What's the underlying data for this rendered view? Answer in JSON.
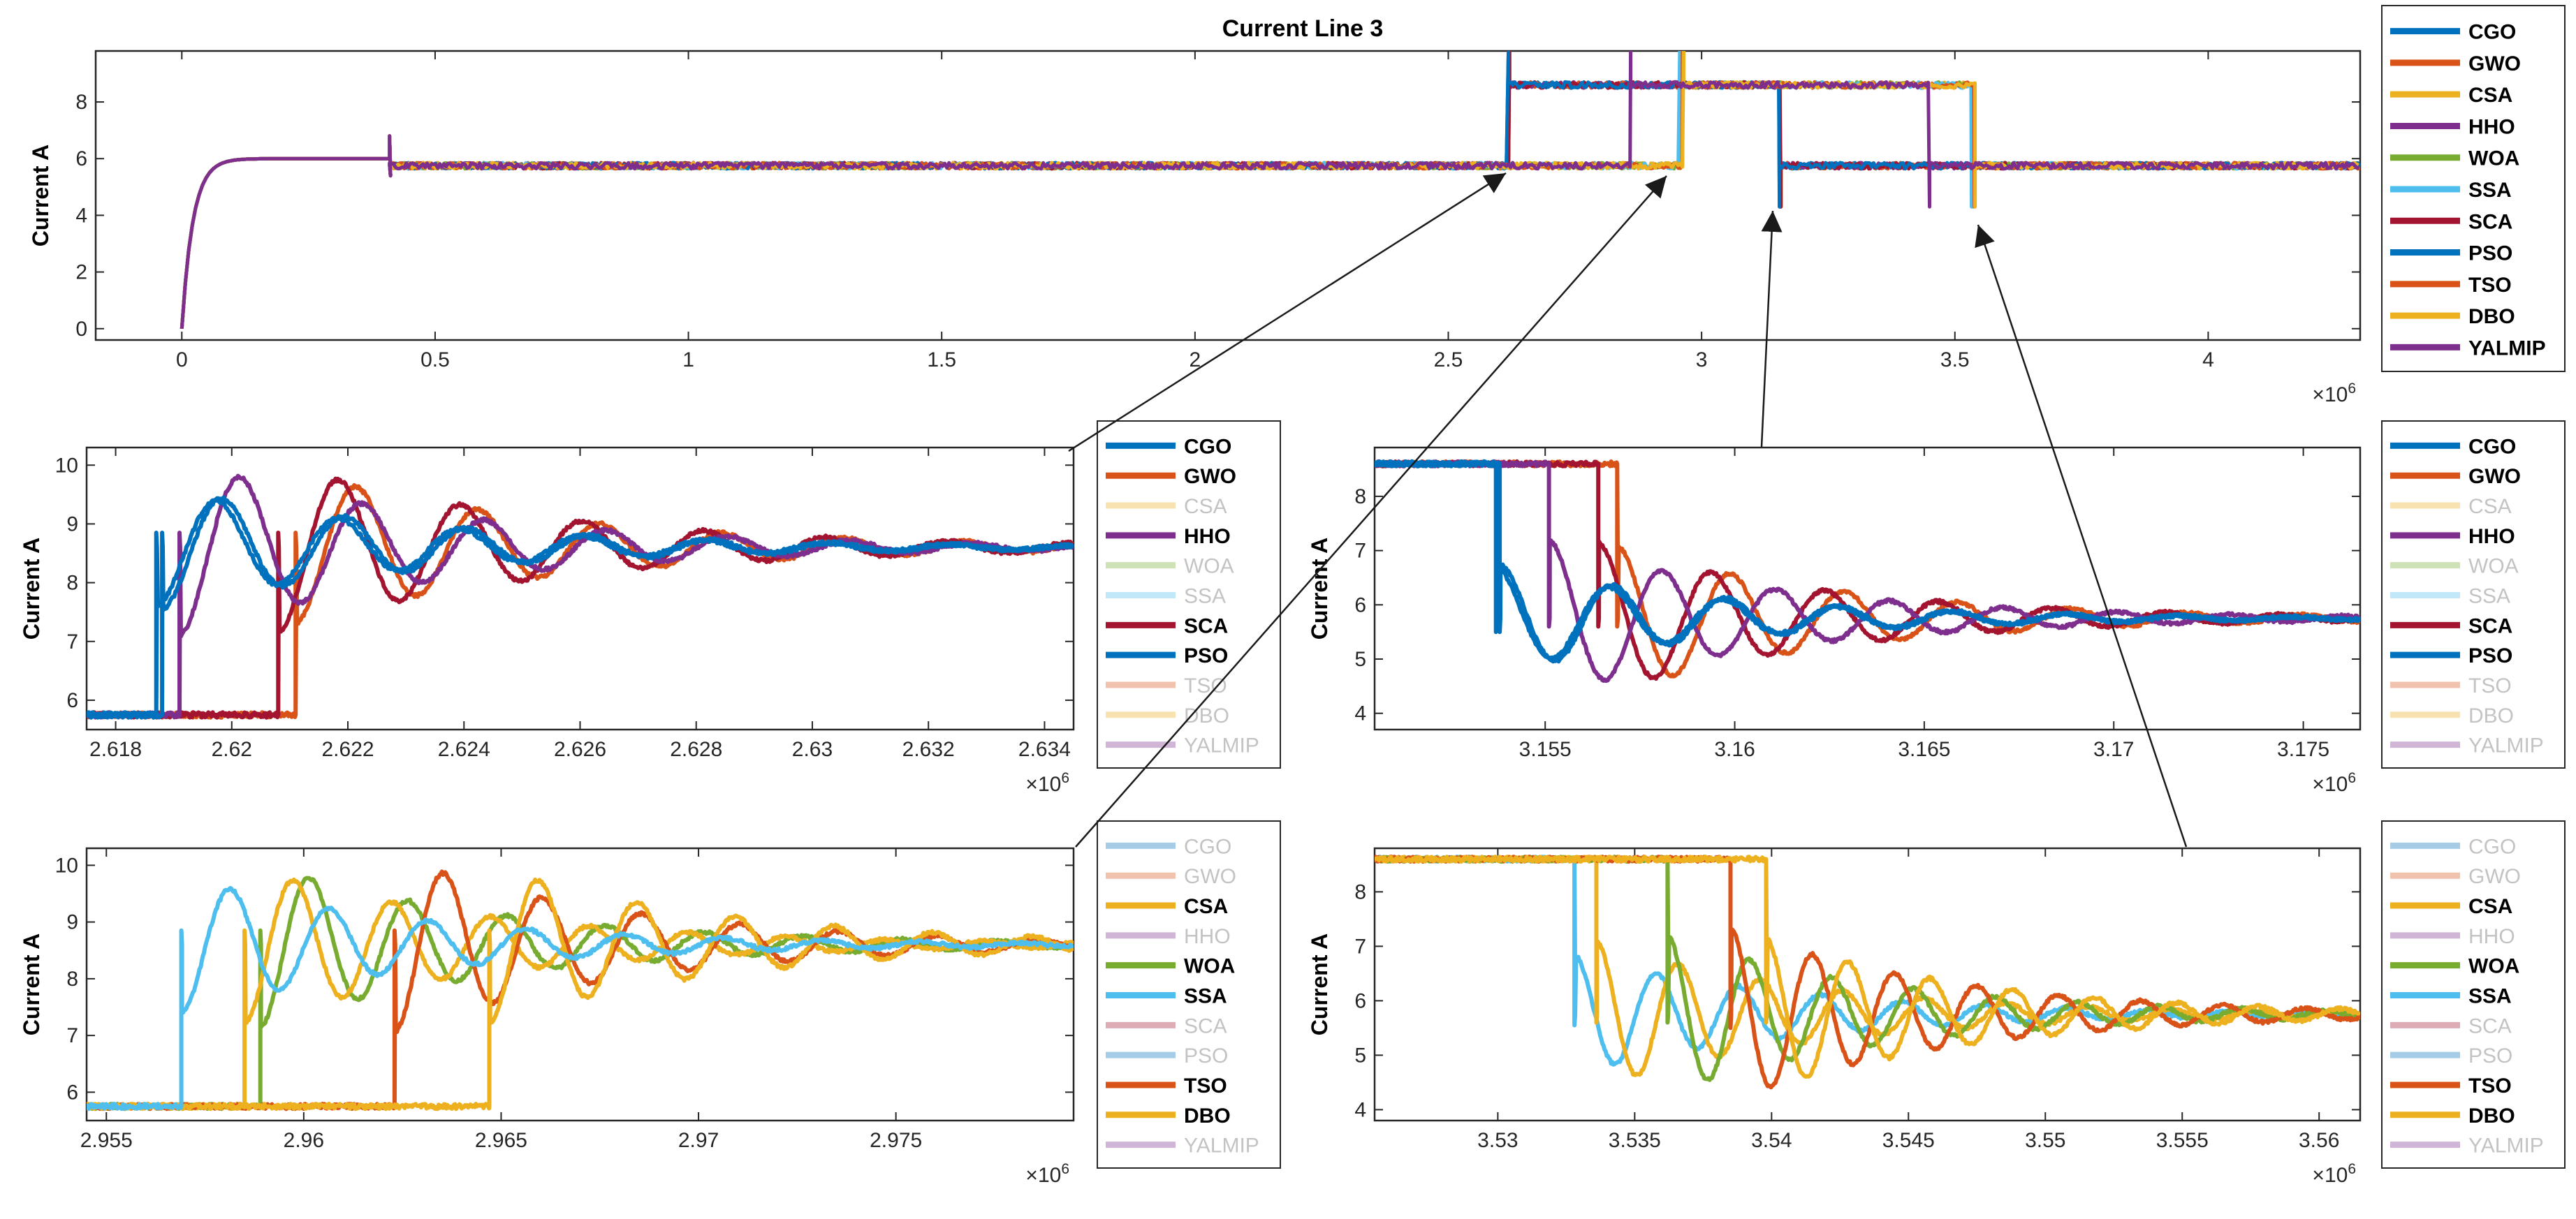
{
  "figure_title": "Current Line 3",
  "series_names": [
    "CGO",
    "GWO",
    "CSA",
    "HHO",
    "WOA",
    "SSA",
    "SCA",
    "PSO",
    "TSO",
    "DBO",
    "YALMIP"
  ],
  "series_colors": {
    "CGO": "#0072BD",
    "GWO": "#D95319",
    "CSA": "#EDB120",
    "HHO": "#7E2F8E",
    "WOA": "#77AC30",
    "SSA": "#4DBEEE",
    "SCA": "#A2142F",
    "PSO": "#0072BD",
    "TSO": "#D95319",
    "DBO": "#EDB120",
    "YALMIP": "#7E2F8E"
  },
  "chart_data": [
    {
      "id": "main",
      "type": "line",
      "title": "Current Line 3",
      "xlabel": "",
      "ylabel": "Current A",
      "x_exponent_label": "×10^6",
      "xlim": [
        -0.17,
        4.3
      ],
      "ylim": [
        -0.4,
        9.8
      ],
      "xticks": [
        0,
        0.5,
        1,
        1.5,
        2,
        2.5,
        3,
        3.5,
        4
      ],
      "xtick_labels": [
        "0",
        "0.5",
        "1",
        "1.5",
        "2",
        "2.5",
        "3",
        "3.5",
        "4"
      ],
      "yticks": [
        0,
        2,
        4,
        6,
        8
      ],
      "ytick_labels": [
        "0",
        "2",
        "4",
        "6",
        "8"
      ],
      "legend_active": [
        "CGO",
        "GWO",
        "CSA",
        "HHO",
        "WOA",
        "SSA",
        "SCA",
        "PSO",
        "TSO",
        "DBO",
        "YALMIP"
      ],
      "legend_placement": "outside-right",
      "series": [
        {
          "name": "CGO",
          "steps": [
            [
              0.41,
              5.75
            ],
            [
              2.6188,
              8.6
            ],
            [
              3.1538,
              5.75
            ]
          ]
        },
        {
          "name": "GWO",
          "steps": [
            [
              0.41,
              5.75
            ],
            [
              2.6211,
              8.6
            ],
            [
              3.1569,
              5.75
            ]
          ]
        },
        {
          "name": "CSA",
          "steps": [
            [
              0.41,
              5.75
            ],
            [
              2.9585,
              8.6
            ],
            [
              3.5336,
              5.75
            ]
          ]
        },
        {
          "name": "HHO",
          "steps": [
            [
              0.41,
              5.75
            ],
            [
              2.6191,
              8.6
            ],
            [
              3.1551,
              5.75
            ]
          ]
        },
        {
          "name": "WOA",
          "steps": [
            [
              0.41,
              5.75
            ],
            [
              2.9589,
              8.6
            ],
            [
              3.5362,
              5.75
            ]
          ]
        },
        {
          "name": "SSA",
          "steps": [
            [
              0.41,
              5.75
            ],
            [
              2.9569,
              8.6
            ],
            [
              3.5328,
              5.75
            ]
          ]
        },
        {
          "name": "SCA",
          "steps": [
            [
              0.41,
              5.75
            ],
            [
              2.6208,
              8.6
            ],
            [
              3.1564,
              5.75
            ]
          ]
        },
        {
          "name": "PSO",
          "steps": [
            [
              0.41,
              5.75
            ],
            [
              2.6187,
              8.6
            ],
            [
              3.1537,
              5.75
            ]
          ]
        },
        {
          "name": "TSO",
          "steps": [
            [
              0.41,
              5.75
            ],
            [
              2.9623,
              8.6
            ],
            [
              3.5385,
              5.75
            ]
          ]
        },
        {
          "name": "DBO",
          "steps": [
            [
              0.41,
              5.75
            ],
            [
              2.9647,
              8.6
            ],
            [
              3.5398,
              5.75
            ]
          ]
        },
        {
          "name": "YALMIP",
          "steps": [
            [
              0.41,
              5.75
            ],
            [
              2.86,
              8.6
            ],
            [
              3.45,
              5.75
            ]
          ]
        }
      ]
    },
    {
      "id": "zoom1",
      "type": "line",
      "title": "",
      "ylabel": "Current A",
      "x_exponent_label": "×10^6",
      "xlim": [
        2.6175,
        2.6345
      ],
      "ylim": [
        5.5,
        10.3
      ],
      "xticks": [
        2.618,
        2.62,
        2.622,
        2.624,
        2.626,
        2.628,
        2.63,
        2.632,
        2.634
      ],
      "xtick_labels": [
        "2.618",
        "2.62",
        "2.622",
        "2.624",
        "2.626",
        "2.628",
        "2.63",
        "2.632",
        "2.634"
      ],
      "yticks": [
        6,
        7,
        8,
        9,
        10
      ],
      "ytick_labels": [
        "6",
        "7",
        "8",
        "9",
        "10"
      ],
      "legend_active": [
        "CGO",
        "GWO",
        "HHO",
        "SCA",
        "PSO"
      ],
      "legend_placement": "outside-right",
      "zoom_of_main_x": 2.62,
      "series": [
        {
          "name": "GWO",
          "t0": 2.6211,
          "from": 5.75,
          "to": 8.6,
          "amp": 1.3,
          "period": 0.0021,
          "decay": 0.0045,
          "spike": 8.7
        },
        {
          "name": "SCA",
          "t0": 2.6208,
          "from": 5.75,
          "to": 8.6,
          "amp": 1.45,
          "period": 0.0021,
          "decay": 0.0045,
          "spike": 8.7
        },
        {
          "name": "HHO",
          "t0": 2.6191,
          "from": 5.75,
          "to": 8.6,
          "amp": 1.5,
          "period": 0.0021,
          "decay": 0.0045,
          "spike": 8.7
        },
        {
          "name": "CGO",
          "t0": 2.6188,
          "from": 5.75,
          "to": 8.6,
          "amp": 1.05,
          "period": 0.0021,
          "decay": 0.0045,
          "spike": 8.7
        },
        {
          "name": "PSO",
          "t0": 2.6187,
          "from": 5.75,
          "to": 8.6,
          "amp": 1.0,
          "period": 0.0021,
          "decay": 0.0045,
          "spike": 8.7
        }
      ]
    },
    {
      "id": "zoom2",
      "type": "line",
      "title": "",
      "ylabel": "Current A",
      "x_exponent_label": "×10^6",
      "xlim": [
        3.1505,
        3.1765
      ],
      "ylim": [
        3.7,
        8.9
      ],
      "xticks": [
        3.155,
        3.16,
        3.165,
        3.17,
        3.175
      ],
      "xtick_labels": [
        "3.155",
        "3.16",
        "3.165",
        "3.17",
        "3.175"
      ],
      "yticks": [
        4,
        5,
        6,
        7,
        8
      ],
      "ytick_labels": [
        "4",
        "5",
        "6",
        "7",
        "8"
      ],
      "legend_active": [
        "CGO",
        "GWO",
        "HHO",
        "SCA",
        "PSO"
      ],
      "legend_placement": "outside-right",
      "zoom_of_main_x": 3.15,
      "series": [
        {
          "name": "GWO",
          "t0": 3.1569,
          "from": 8.6,
          "to": 5.75,
          "amp": -1.35,
          "period": 0.003,
          "decay": 0.006,
          "spike": 5.7
        },
        {
          "name": "SCA",
          "t0": 3.1564,
          "from": 8.6,
          "to": 5.75,
          "amp": -1.4,
          "period": 0.003,
          "decay": 0.006,
          "spike": 5.7
        },
        {
          "name": "HHO",
          "t0": 3.1551,
          "from": 8.6,
          "to": 5.75,
          "amp": -1.45,
          "period": 0.003,
          "decay": 0.006,
          "spike": 5.7
        },
        {
          "name": "CGO",
          "t0": 3.1538,
          "from": 8.6,
          "to": 5.75,
          "amp": -1.0,
          "period": 0.003,
          "decay": 0.006,
          "spike": 5.6
        },
        {
          "name": "PSO",
          "t0": 3.1537,
          "from": 8.6,
          "to": 5.75,
          "amp": -0.95,
          "period": 0.003,
          "decay": 0.006,
          "spike": 5.6
        }
      ]
    },
    {
      "id": "zoom3",
      "type": "line",
      "title": "",
      "ylabel": "Current A",
      "x_exponent_label": "×10^6",
      "xlim": [
        2.9545,
        2.9795
      ],
      "ylim": [
        5.5,
        10.3
      ],
      "xticks": [
        2.955,
        2.96,
        2.965,
        2.97,
        2.975
      ],
      "xtick_labels": [
        "2.955",
        "2.96",
        "2.965",
        "2.97",
        "2.975"
      ],
      "yticks": [
        6,
        7,
        8,
        9,
        10
      ],
      "ytick_labels": [
        "6",
        "7",
        "8",
        "9",
        "10"
      ],
      "legend_active": [
        "CSA",
        "WOA",
        "SSA",
        "TSO",
        "DBO"
      ],
      "legend_placement": "outside-right",
      "zoom_of_main_x": 2.96,
      "series": [
        {
          "name": "WOA",
          "t0": 2.9589,
          "from": 5.75,
          "to": 8.6,
          "amp": 1.45,
          "period": 0.0025,
          "decay": 0.006,
          "spike": 8.7
        },
        {
          "name": "CSA",
          "t0": 2.9585,
          "from": 5.75,
          "to": 8.6,
          "amp": 1.4,
          "period": 0.0025,
          "decay": 0.006,
          "spike": 8.7
        },
        {
          "name": "TSO",
          "t0": 2.9623,
          "from": 5.75,
          "to": 8.6,
          "amp": 1.55,
          "period": 0.0025,
          "decay": 0.006,
          "spike": 8.7
        },
        {
          "name": "DBO",
          "t0": 2.9647,
          "from": 5.75,
          "to": 8.6,
          "amp": 1.4,
          "period": 0.0025,
          "decay": 0.006,
          "spike": 8.7
        },
        {
          "name": "SSA",
          "t0": 2.9569,
          "from": 5.75,
          "to": 8.6,
          "amp": 1.2,
          "period": 0.0025,
          "decay": 0.006,
          "spike": 8.7
        }
      ]
    },
    {
      "id": "zoom4",
      "type": "line",
      "title": "",
      "ylabel": "Current A",
      "x_exponent_label": "×10^6",
      "xlim": [
        3.5255,
        3.5615
      ],
      "ylim": [
        3.8,
        8.8
      ],
      "xticks": [
        3.53,
        3.535,
        3.54,
        3.545,
        3.55,
        3.555,
        3.56
      ],
      "xtick_labels": [
        "3.53",
        "3.535",
        "3.54",
        "3.545",
        "3.55",
        "3.555",
        "3.56"
      ],
      "yticks": [
        4,
        5,
        6,
        7,
        8
      ],
      "ytick_labels": [
        "4",
        "5",
        "6",
        "7",
        "8"
      ],
      "legend_active": [
        "CSA",
        "WOA",
        "SSA",
        "TSO",
        "DBO"
      ],
      "legend_placement": "outside-right",
      "zoom_of_main_x": 3.54,
      "series": [
        {
          "name": "SSA",
          "t0": 3.5328,
          "from": 8.6,
          "to": 5.75,
          "amp": -1.1,
          "period": 0.003,
          "decay": 0.008,
          "spike": 5.65
        },
        {
          "name": "CSA",
          "t0": 3.5336,
          "from": 8.6,
          "to": 5.75,
          "amp": -1.35,
          "period": 0.003,
          "decay": 0.008,
          "spike": 5.7
        },
        {
          "name": "WOA",
          "t0": 3.5362,
          "from": 8.6,
          "to": 5.75,
          "amp": -1.45,
          "period": 0.003,
          "decay": 0.008,
          "spike": 5.7
        },
        {
          "name": "TSO",
          "t0": 3.5385,
          "from": 8.6,
          "to": 5.75,
          "amp": -1.6,
          "period": 0.003,
          "decay": 0.008,
          "spike": 5.6
        },
        {
          "name": "DBO",
          "t0": 3.5398,
          "from": 8.6,
          "to": 5.75,
          "amp": -1.4,
          "period": 0.003,
          "decay": 0.008,
          "spike": 5.7
        }
      ]
    }
  ]
}
